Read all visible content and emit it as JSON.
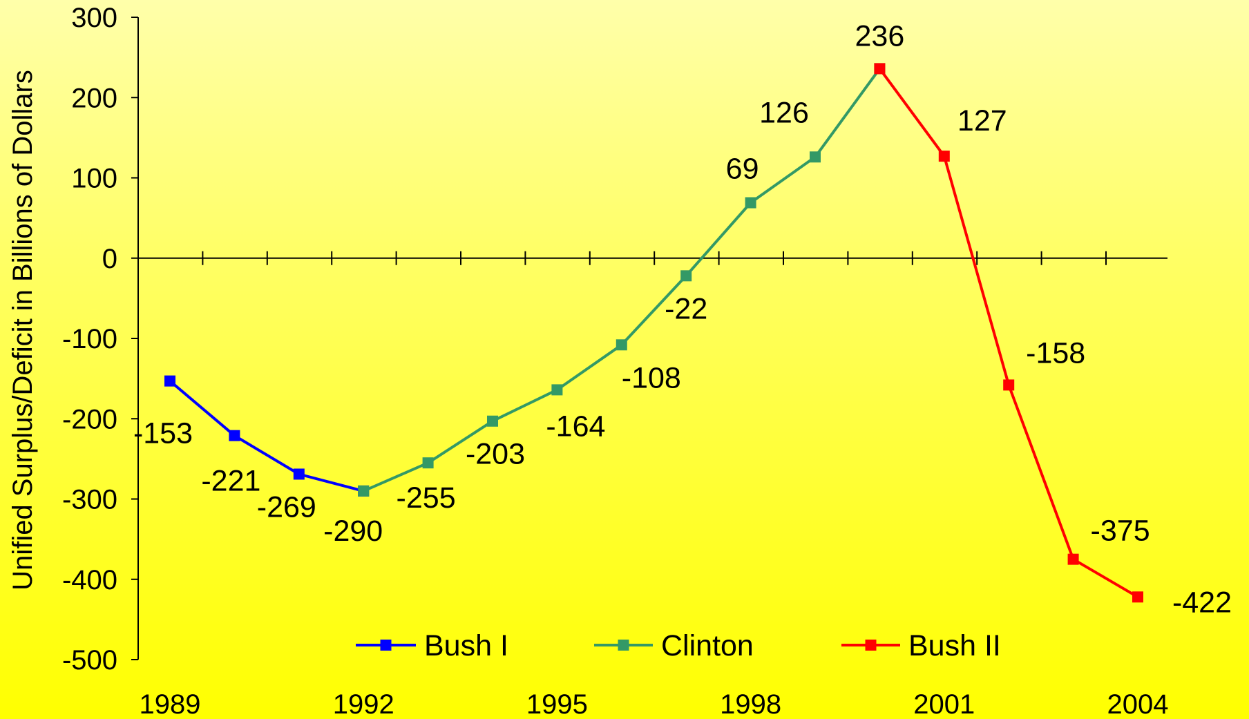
{
  "chart_data": {
    "type": "line",
    "title": "",
    "xlabel": "",
    "ylabel": "Unified Surplus/Deficit in Billions of Dollars",
    "ylim": [
      -500,
      300
    ],
    "yticks": [
      "300",
      "200",
      "100",
      "0",
      "-100",
      "-200",
      "-300",
      "-400",
      "-500"
    ],
    "x": [
      1989,
      1990,
      1991,
      1992,
      1993,
      1994,
      1995,
      1996,
      1997,
      1998,
      1999,
      2000,
      2001,
      2002,
      2003,
      2004
    ],
    "xtick_labels": [
      "1989",
      "1992",
      "1995",
      "1998",
      "2001",
      "2004"
    ],
    "grid": false,
    "legend_position": "bottom",
    "series": [
      {
        "name": "Bush I",
        "color": "#0000FF",
        "x": [
          1989,
          1990,
          1991,
          1992
        ],
        "values": [
          -153,
          -221,
          -269,
          -290
        ],
        "labels": [
          "-153",
          "-221",
          "-269",
          "-290"
        ]
      },
      {
        "name": "Clinton",
        "color": "#339966",
        "x": [
          1992,
          1993,
          1994,
          1995,
          1996,
          1997,
          1998,
          1999,
          2000
        ],
        "values": [
          -290,
          -255,
          -203,
          -164,
          -108,
          -22,
          69,
          126,
          236
        ],
        "labels": [
          "",
          "-255",
          "-203",
          "-164",
          "-108",
          "-22",
          "69",
          "126",
          "236"
        ]
      },
      {
        "name": "Bush II",
        "color": "#FF0000",
        "x": [
          2000,
          2001,
          2002,
          2003,
          2004
        ],
        "values": [
          236,
          127,
          -158,
          -375,
          -422
        ],
        "labels": [
          "",
          "127",
          "-158",
          "-375",
          "-422"
        ]
      }
    ]
  }
}
